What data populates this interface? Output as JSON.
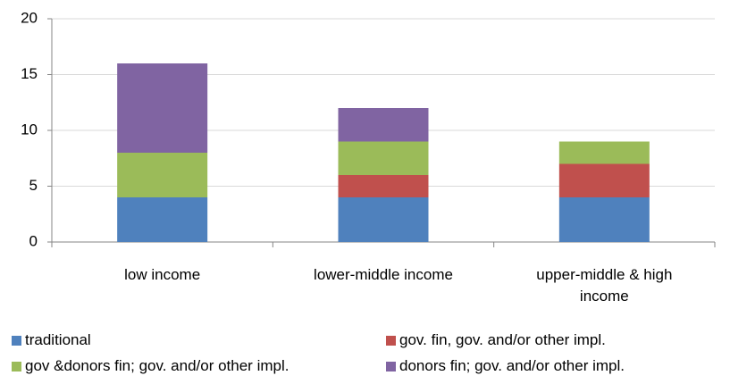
{
  "chart_data": {
    "type": "bar",
    "stacked": true,
    "categories": [
      "low income",
      "lower-middle income",
      "upper-middle & high income"
    ],
    "series": [
      {
        "name": "traditional",
        "color": "#4f81bd",
        "values": [
          4,
          4,
          4
        ]
      },
      {
        "name": "gov. fin, gov. and/or other impl.",
        "color": "#c0504d",
        "values": [
          0,
          2,
          3
        ]
      },
      {
        "name": "gov &donors fin; gov. and/or other impl.",
        "color": "#9bbb59",
        "values": [
          4,
          3,
          2
        ]
      },
      {
        "name": "donors fin; gov. and/or other impl.",
        "color": "#8064a2",
        "values": [
          8,
          3,
          0
        ]
      }
    ],
    "ylim": [
      0,
      20
    ],
    "yticks": [
      0,
      5,
      10,
      15,
      20
    ],
    "grid": true,
    "legend": "bottom"
  }
}
